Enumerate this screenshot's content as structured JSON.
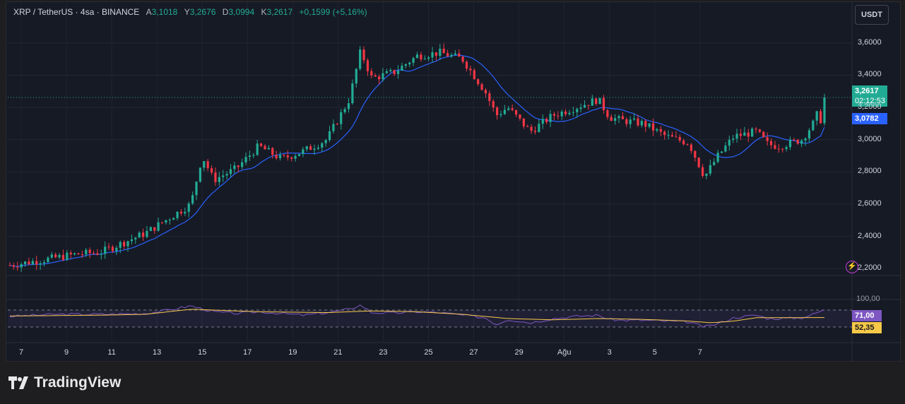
{
  "legend": {
    "symbol": "XRP / TetherUS · 4sa · BINANCE",
    "open_label": "A",
    "open": "3,1018",
    "high_label": "Y",
    "high": "3,2676",
    "low_label": "D",
    "low": "3,0994",
    "close_label": "K",
    "close": "3,2617",
    "change": "+0,1599 (+5,16%)"
  },
  "currency_button": "USDT",
  "last_price_tag": {
    "price": "3,2617",
    "countdown": "02:12:53"
  },
  "ma_tag": "3,0782",
  "rsi_tags": {
    "rsi": "71,00",
    "rsi_ma": "52,35"
  },
  "rsi_top_label": "100,00",
  "brand": "TradingView",
  "colors": {
    "up": "#22ab94",
    "down": "#f23645",
    "ma": "#2962ff",
    "rsi": "#7e57c2",
    "rsi_ma": "#f7c948",
    "bg": "#161a25"
  },
  "chart_data": [
    {
      "type": "candlestick",
      "xlim": [
        "Jul 6",
        "Aug 8"
      ],
      "y_ticks": [
        "3,6000",
        "3,4000",
        "3,2000",
        "3,0000",
        "2,8000",
        "2,6000",
        "2,4000",
        "2,2000"
      ],
      "ylim": [
        2.1,
        3.7
      ],
      "x_ticks": [
        "7",
        "9",
        "11",
        "13",
        "15",
        "17",
        "19",
        "21",
        "23",
        "25",
        "27",
        "29",
        "Ağu",
        "3",
        "5",
        "7"
      ],
      "key_prices": [
        {
          "x": 0,
          "y": 2.22
        },
        {
          "x": 3,
          "y": 2.29
        },
        {
          "x": 4,
          "y": 2.3
        },
        {
          "x": 6,
          "y": 2.42
        },
        {
          "x": 8,
          "y": 2.6
        },
        {
          "x": 8.5,
          "y": 2.9
        },
        {
          "x": 9,
          "y": 2.75
        },
        {
          "x": 10,
          "y": 2.82
        },
        {
          "x": 11,
          "y": 2.96
        },
        {
          "x": 12,
          "y": 2.88
        },
        {
          "x": 13,
          "y": 2.93
        },
        {
          "x": 14,
          "y": 3.0
        },
        {
          "x": 15,
          "y": 3.25
        },
        {
          "x": 15.5,
          "y": 3.55
        },
        {
          "x": 16,
          "y": 3.38
        },
        {
          "x": 17,
          "y": 3.42
        },
        {
          "x": 18,
          "y": 3.52
        },
        {
          "x": 19,
          "y": 3.54
        },
        {
          "x": 20,
          "y": 3.5
        },
        {
          "x": 21,
          "y": 3.3
        },
        {
          "x": 21.5,
          "y": 3.15
        },
        {
          "x": 22,
          "y": 3.2
        },
        {
          "x": 23,
          "y": 3.05
        },
        {
          "x": 24,
          "y": 3.15
        },
        {
          "x": 25,
          "y": 3.2
        },
        {
          "x": 26,
          "y": 3.25
        },
        {
          "x": 26.5,
          "y": 3.14
        },
        {
          "x": 27,
          "y": 3.12
        },
        {
          "x": 28,
          "y": 3.1
        },
        {
          "x": 29,
          "y": 3.02
        },
        {
          "x": 30,
          "y": 2.98
        },
        {
          "x": 30.7,
          "y": 2.77
        },
        {
          "x": 31.3,
          "y": 2.9
        },
        {
          "x": 32,
          "y": 3.02
        },
        {
          "x": 33,
          "y": 3.05
        },
        {
          "x": 33.5,
          "y": 2.97
        },
        {
          "x": 34,
          "y": 2.96
        },
        {
          "x": 35,
          "y": 3.0
        },
        {
          "x": 35.5,
          "y": 3.1
        },
        {
          "x": 36,
          "y": 3.2617
        }
      ],
      "last_price": 3.2617,
      "ma_last": 3.0782
    },
    {
      "type": "line",
      "name": "RSI",
      "ylim": [
        0,
        100
      ],
      "guide_levels": [
        70,
        30
      ],
      "series": [
        {
          "points": [
            {
              "x": 0,
              "y": 55
            },
            {
              "x": 2,
              "y": 60
            },
            {
              "x": 4,
              "y": 60
            },
            {
              "x": 6,
              "y": 62
            },
            {
              "x": 7,
              "y": 70
            },
            {
              "x": 8,
              "y": 80
            },
            {
              "x": 9,
              "y": 66
            },
            {
              "x": 10,
              "y": 62
            },
            {
              "x": 11,
              "y": 66
            },
            {
              "x": 12,
              "y": 62
            },
            {
              "x": 13,
              "y": 58
            },
            {
              "x": 14,
              "y": 64
            },
            {
              "x": 15,
              "y": 72
            },
            {
              "x": 15.5,
              "y": 82
            },
            {
              "x": 16,
              "y": 64
            },
            {
              "x": 17,
              "y": 63
            },
            {
              "x": 18,
              "y": 66
            },
            {
              "x": 19,
              "y": 64
            },
            {
              "x": 20,
              "y": 58
            },
            {
              "x": 21,
              "y": 52
            },
            {
              "x": 21.5,
              "y": 36
            },
            {
              "x": 22,
              "y": 48
            },
            {
              "x": 23,
              "y": 40
            },
            {
              "x": 24,
              "y": 50
            },
            {
              "x": 25,
              "y": 55
            },
            {
              "x": 26,
              "y": 58
            },
            {
              "x": 26.5,
              "y": 48
            },
            {
              "x": 27,
              "y": 46
            },
            {
              "x": 28,
              "y": 46
            },
            {
              "x": 29,
              "y": 44
            },
            {
              "x": 30,
              "y": 42
            },
            {
              "x": 30.7,
              "y": 30
            },
            {
              "x": 31.3,
              "y": 38
            },
            {
              "x": 32,
              "y": 52
            },
            {
              "x": 33,
              "y": 58
            },
            {
              "x": 33.5,
              "y": 50
            },
            {
              "x": 34,
              "y": 50
            },
            {
              "x": 35,
              "y": 52
            },
            {
              "x": 35.5,
              "y": 60
            },
            {
              "x": 36,
              "y": 71
            }
          ]
        },
        {
          "points": [
            {
              "x": 0,
              "y": 56
            },
            {
              "x": 4,
              "y": 58
            },
            {
              "x": 6,
              "y": 60
            },
            {
              "x": 8,
              "y": 72
            },
            {
              "x": 9,
              "y": 70
            },
            {
              "x": 11,
              "y": 66
            },
            {
              "x": 14,
              "y": 64
            },
            {
              "x": 16,
              "y": 68
            },
            {
              "x": 18,
              "y": 66
            },
            {
              "x": 20,
              "y": 60
            },
            {
              "x": 22,
              "y": 50
            },
            {
              "x": 24,
              "y": 47
            },
            {
              "x": 26,
              "y": 50
            },
            {
              "x": 28,
              "y": 48
            },
            {
              "x": 30,
              "y": 44
            },
            {
              "x": 31,
              "y": 40
            },
            {
              "x": 32,
              "y": 44
            },
            {
              "x": 33,
              "y": 52
            },
            {
              "x": 34,
              "y": 52
            },
            {
              "x": 36,
              "y": 52.35
            }
          ]
        }
      ]
    }
  ]
}
